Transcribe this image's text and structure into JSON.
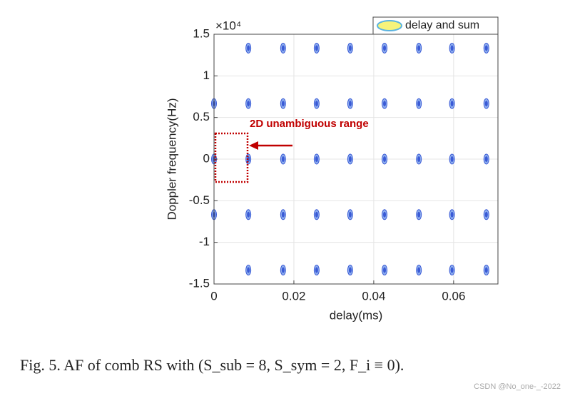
{
  "chart_data": {
    "type": "scatter",
    "x_label": "delay(ms)",
    "y_label": "Doppler frequency(Hz)",
    "y_multiplier": "×10⁴",
    "annotation": "2D unambiguous range",
    "caption": "Fig. 5.   AF of comb RS with (S_sub = 8, S_sym = 2, F_i ≡ 0).",
    "watermark": "CSDN @No_one-_-2022",
    "legend": "top-right",
    "grid": true,
    "xlim": [
      0,
      0.0711
    ],
    "xticks": [
      0,
      0.02,
      0.04,
      0.06
    ],
    "ylim": [
      -15000,
      15000
    ],
    "yticks": [
      {
        "value": -15000,
        "label": "-1.5"
      },
      {
        "value": -10000,
        "label": "-1"
      },
      {
        "value": -5000,
        "label": "-0.5"
      },
      {
        "value": 0,
        "label": "0"
      },
      {
        "value": 5000,
        "label": "0.5"
      },
      {
        "value": 10000,
        "label": "1"
      },
      {
        "value": 15000,
        "label": "1.5"
      }
    ],
    "series": [
      {
        "name": "delay and sum",
        "color": "#3a5ad6",
        "x": [
          0.0086,
          0.0173,
          0.0257,
          0.0341,
          0.0427,
          0.0513,
          0.0596,
          0.0682,
          0,
          0.0086,
          0.0173,
          0.0257,
          0.0341,
          0.0427,
          0.0513,
          0.0596,
          0.0682,
          0,
          0.0086,
          0.0173,
          0.0257,
          0.0341,
          0.0427,
          0.0513,
          0.0596,
          0.0682,
          0,
          0.0086,
          0.0173,
          0.0257,
          0.0341,
          0.0427,
          0.0513,
          0.0596,
          0.0682,
          0.0086,
          0.0173,
          0.0257,
          0.0341,
          0.0427,
          0.0513,
          0.0596,
          0.0682
        ],
        "y": [
          13333,
          13333,
          13333,
          13333,
          13333,
          13333,
          13333,
          13333,
          6667,
          6667,
          6667,
          6667,
          6667,
          6667,
          6667,
          6667,
          6667,
          0,
          0,
          0,
          0,
          0,
          0,
          0,
          0,
          0,
          -6667,
          -6667,
          -6667,
          -6667,
          -6667,
          -6667,
          -6667,
          -6667,
          -6667,
          -13333,
          -13333,
          -13333,
          -13333,
          -13333,
          -13333,
          -13333,
          -13333
        ]
      }
    ]
  }
}
